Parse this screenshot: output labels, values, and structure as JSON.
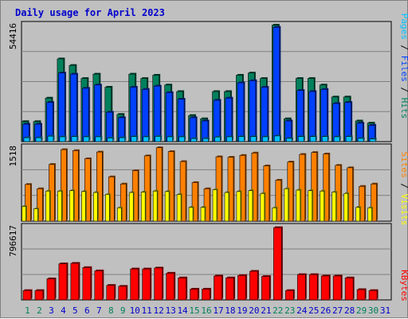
{
  "title": "Daily usage for April 2023",
  "colors": {
    "hits": "#00805c",
    "files": "#0040ff",
    "pages": "#00c0ff",
    "visits": "#ffff00",
    "sites": "#ff8000",
    "kbytes": "#ff0000",
    "weekend_label": "#00805c",
    "weekday_label": "#0000cc"
  },
  "chart_data": [
    {
      "type": "bar",
      "panel": "hits-files-pages",
      "categories": [
        "1",
        "2",
        "3",
        "4",
        "5",
        "6",
        "7",
        "8",
        "9",
        "10",
        "11",
        "12",
        "13",
        "14",
        "15",
        "16",
        "17",
        "18",
        "19",
        "20",
        "21",
        "22",
        "23",
        "24",
        "25",
        "26",
        "27",
        "28",
        "29",
        "30",
        "31"
      ],
      "weekend": [
        1,
        2,
        8,
        9,
        15,
        16,
        22,
        23,
        29,
        30
      ],
      "y_max_label": "54416",
      "ylim": [
        0,
        54416
      ],
      "series": [
        {
          "name": "Hits",
          "values": [
            9200,
            9200,
            20000,
            38000,
            35000,
            29000,
            31000,
            25000,
            12500,
            31000,
            29000,
            30500,
            26000,
            23000,
            12000,
            10500,
            23000,
            23000,
            30500,
            31500,
            29000,
            53500,
            10500,
            29000,
            29000,
            26000,
            20500,
            20500,
            9500,
            8500,
            null
          ]
        },
        {
          "name": "Files",
          "values": [
            8000,
            8000,
            18000,
            31500,
            31000,
            24500,
            26000,
            13500,
            11000,
            25000,
            24000,
            25500,
            22500,
            19500,
            11000,
            9500,
            19000,
            20000,
            27000,
            28000,
            25000,
            52500,
            9500,
            23500,
            23000,
            24000,
            17500,
            18000,
            8500,
            7500,
            null
          ]
        },
        {
          "name": "Pages",
          "values": [
            1800,
            1800,
            2500,
            2200,
            2300,
            2200,
            2200,
            1700,
            1800,
            2300,
            2200,
            2400,
            2200,
            2200,
            1400,
            1400,
            2100,
            2200,
            2300,
            2300,
            2200,
            2600,
            1500,
            2300,
            2300,
            2300,
            2200,
            2300,
            1500,
            1200,
            null
          ]
        }
      ]
    },
    {
      "type": "bar",
      "panel": "visits-sites",
      "y_max_label": "1518",
      "ylim": [
        0,
        1518
      ],
      "series": [
        {
          "name": "Visits",
          "values": [
            310,
            260,
            630,
            630,
            640,
            620,
            600,
            560,
            280,
            600,
            610,
            630,
            620,
            560,
            290,
            290,
            660,
            600,
            620,
            640,
            580,
            280,
            680,
            650,
            640,
            630,
            610,
            580,
            290,
            280,
            null
          ]
        },
        {
          "name": "Sites",
          "values": [
            770,
            680,
            1190,
            1500,
            1480,
            1310,
            1450,
            930,
            780,
            1060,
            1370,
            1540,
            1460,
            1250,
            810,
            680,
            1350,
            1340,
            1380,
            1430,
            1160,
            860,
            1240,
            1400,
            1440,
            1410,
            1170,
            1120,
            730,
            780,
            null
          ]
        }
      ]
    },
    {
      "type": "bar",
      "panel": "kbytes",
      "y_max_label": "796617",
      "ylim": [
        0,
        796617
      ],
      "series": [
        {
          "name": "KBytes",
          "values": [
            100000,
            100000,
            225000,
            385000,
            390000,
            345000,
            310000,
            155000,
            145000,
            330000,
            330000,
            340000,
            285000,
            235000,
            115000,
            115000,
            255000,
            235000,
            260000,
            305000,
            250000,
            770000,
            100000,
            270000,
            270000,
            255000,
            255000,
            235000,
            110000,
            100000,
            null
          ]
        }
      ]
    }
  ],
  "legend": {
    "top_right": [
      "Pages",
      "Files",
      "Hits"
    ],
    "middle_right": [
      "Sites",
      "Visits"
    ],
    "bottom_right": [
      "KBytes"
    ]
  }
}
